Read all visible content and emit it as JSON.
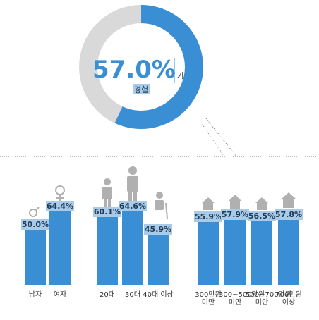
{
  "chart_data": [
    {
      "type": "donut",
      "values": [
        57
      ],
      "value_labels": [
        "57.0%"
      ],
      "suffix": "가",
      "label": "경험",
      "color": "#3a8fd4",
      "track_color": "#d9d9d9"
    },
    {
      "type": "bar",
      "categories": [
        "남자",
        "여자"
      ],
      "values": [
        50.0,
        64.4
      ],
      "value_labels": [
        "50.0%",
        "64.4%"
      ],
      "color": "#3a8fd4"
    },
    {
      "type": "bar",
      "categories": [
        "20대",
        "30대",
        "40대 이상"
      ],
      "values": [
        60.1,
        64.6,
        45.9
      ],
      "value_labels": [
        "60.1%",
        "64.6%",
        "45.9%"
      ],
      "color": "#3a8fd4"
    },
    {
      "type": "bar",
      "categories": [
        "300만원 미만",
        "300~500만원 미만",
        "500~700만원 미만",
        "700만원 이상"
      ],
      "values": [
        55.9,
        57.9,
        56.5,
        57.8
      ],
      "value_labels": [
        "55.9%",
        "57.9%",
        "56.5%",
        "57.8%"
      ],
      "color": "#3a8fd4"
    }
  ]
}
